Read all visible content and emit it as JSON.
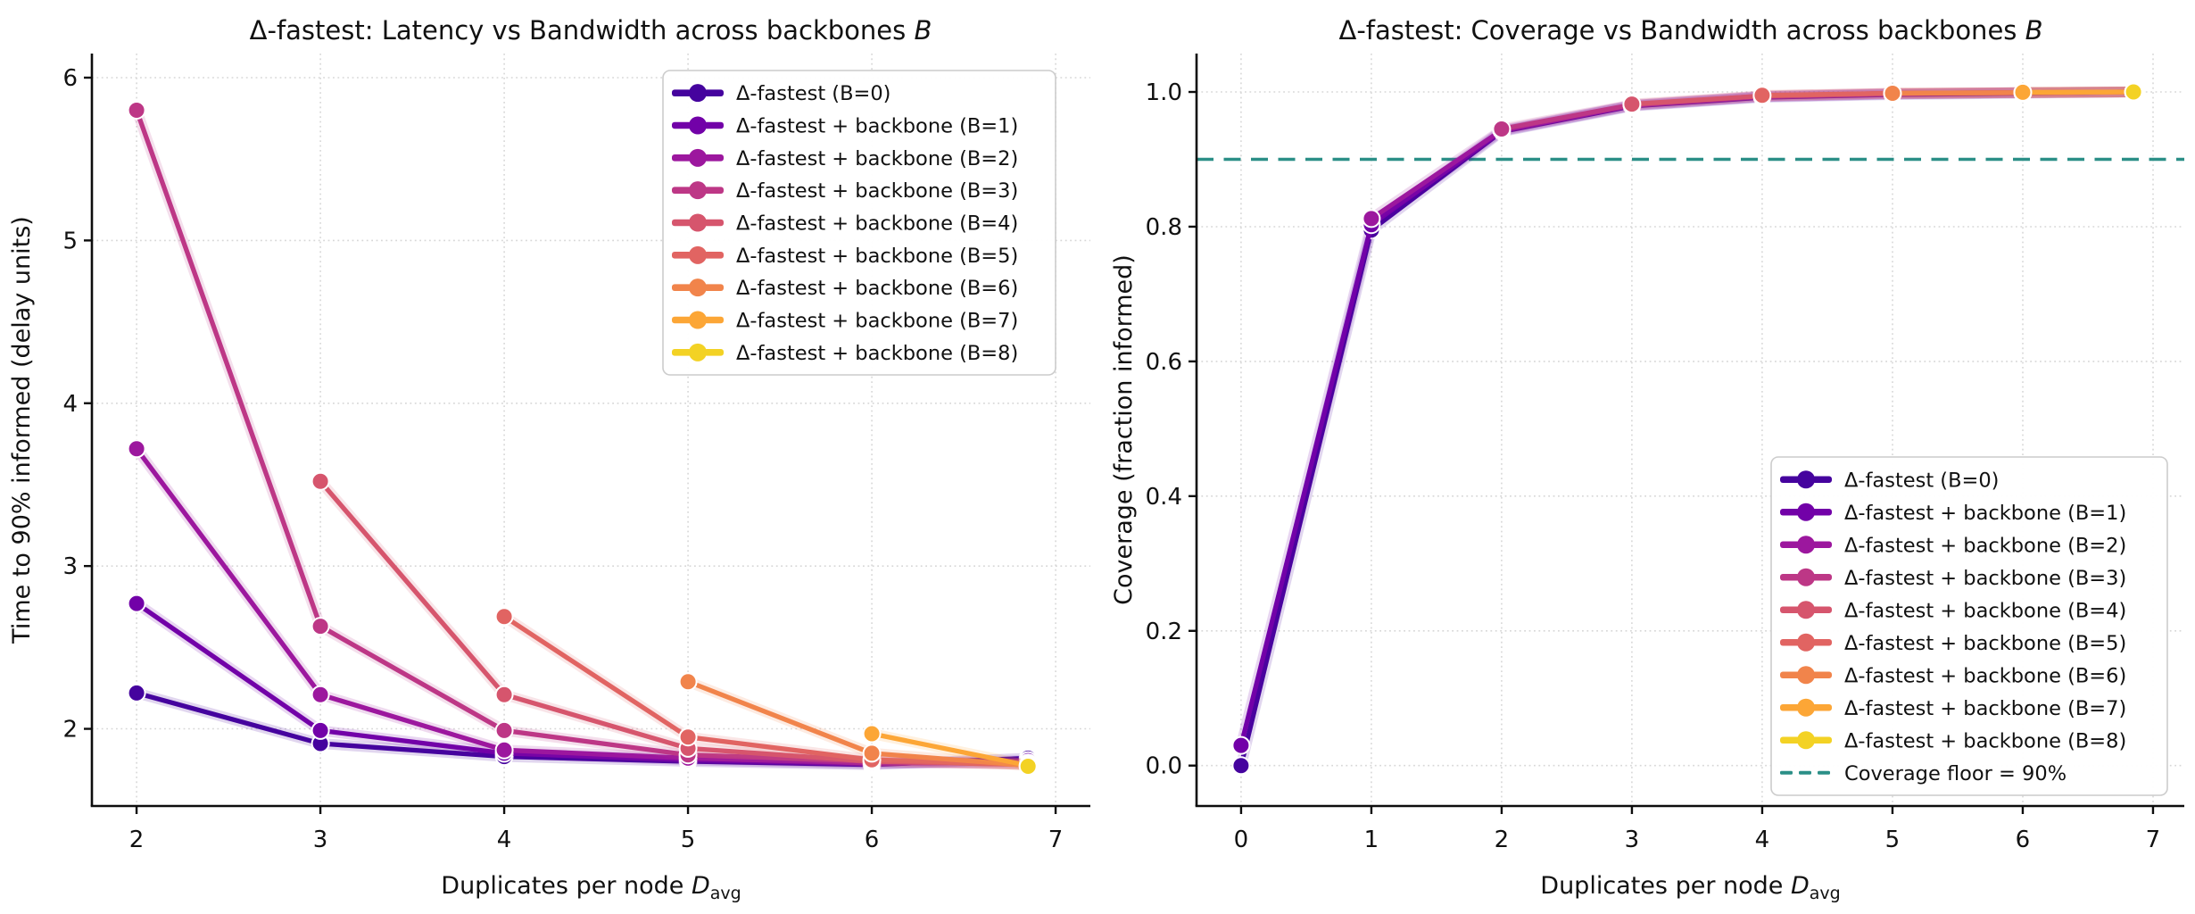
{
  "figure": {
    "background": "#ffffff",
    "description": "Two side-by-side line charts"
  },
  "chart_data": [
    {
      "id": "latency",
      "type": "line",
      "title": "Δ-fastest: Latency vs Bandwidth across backbones B",
      "title_parts": {
        "text": "Δ-fastest: Latency vs Bandwidth across backbones ",
        "italic": "B"
      },
      "xlabel": "Duplicates per node D_avg",
      "xlabel_parts": {
        "text": "Duplicates per node ",
        "var": "D",
        "sub": "avg"
      },
      "ylabel": "Time to 90% informed (delay units)",
      "xlim": [
        1.757,
        7.189
      ],
      "ylim": [
        1.526,
        6.148
      ],
      "grid": true,
      "legend_position": "upper right",
      "xticks": {
        "values": [
          2,
          3,
          4,
          5,
          6,
          7
        ],
        "labels": [
          "2",
          "3",
          "4",
          "5",
          "6",
          "7"
        ]
      },
      "yticks": {
        "values": [
          2,
          3,
          4,
          5,
          6
        ],
        "labels": [
          "2",
          "3",
          "4",
          "5",
          "6"
        ]
      },
      "series": [
        {
          "name": "Δ-fastest (B=0)",
          "color": "#45039e",
          "points": [
            [
              2,
              2.22
            ],
            [
              3,
              1.91
            ],
            [
              4,
              1.83
            ],
            [
              5,
              1.8
            ],
            [
              6,
              1.78
            ],
            [
              6.85,
              1.82
            ]
          ]
        },
        {
          "name": "Δ-fastest + backbone (B=1)",
          "color": "#7201a8",
          "points": [
            [
              2,
              2.77
            ],
            [
              3,
              1.99
            ],
            [
              4,
              1.85
            ],
            [
              5,
              1.81
            ],
            [
              6,
              1.785
            ],
            [
              6.85,
              1.805
            ]
          ]
        },
        {
          "name": "Δ-fastest + backbone (B=2)",
          "color": "#9c179e",
          "points": [
            [
              2,
              3.72
            ],
            [
              3,
              2.21
            ],
            [
              4,
              1.87
            ],
            [
              5,
              1.82
            ],
            [
              6,
              1.79
            ],
            [
              6.85,
              1.79
            ]
          ]
        },
        {
          "name": "Δ-fastest + backbone (B=3)",
          "color": "#bd3786",
          "points": [
            [
              2,
              5.8
            ],
            [
              3,
              2.63
            ],
            [
              4,
              1.99
            ],
            [
              5,
              1.84
            ],
            [
              6,
              1.8
            ],
            [
              6.85,
              1.785
            ]
          ]
        },
        {
          "name": "Δ-fastest + backbone (B=4)",
          "color": "#d6556d",
          "points": [
            [
              3,
              3.52
            ],
            [
              4,
              2.21
            ],
            [
              5,
              1.88
            ],
            [
              6,
              1.8
            ],
            [
              6.85,
              1.78
            ]
          ]
        },
        {
          "name": "Δ-fastest + backbone (B=5)",
          "color": "#e16462",
          "points": [
            [
              4,
              2.69
            ],
            [
              5,
              1.95
            ],
            [
              6,
              1.81
            ],
            [
              6.85,
              1.78
            ]
          ]
        },
        {
          "name": "Δ-fastest + backbone (B=6)",
          "color": "#f1844b",
          "points": [
            [
              5,
              2.29
            ],
            [
              6,
              1.85
            ],
            [
              6.85,
              1.775
            ]
          ]
        },
        {
          "name": "Δ-fastest + backbone (B=7)",
          "color": "#fca636",
          "points": [
            [
              6,
              1.97
            ],
            [
              6.85,
              1.775
            ]
          ]
        },
        {
          "name": "Δ-fastest + backbone (B=8)",
          "color": "#f3d224",
          "points": [
            [
              6.85,
              1.77
            ]
          ]
        }
      ]
    },
    {
      "id": "coverage",
      "type": "line",
      "title": "Δ-fastest: Coverage vs Bandwidth across backbones B",
      "title_parts": {
        "text": "Δ-fastest: Coverage vs Bandwidth across backbones ",
        "italic": "B"
      },
      "xlabel": "Duplicates per node D_avg",
      "xlabel_parts": {
        "text": "Duplicates per node ",
        "var": "D",
        "sub": "avg"
      },
      "ylabel": "Coverage (fraction informed)",
      "xlim": [
        -0.342,
        7.24
      ],
      "ylim": [
        -0.06,
        1.057
      ],
      "grid": true,
      "legend_position": "lower right",
      "xticks": {
        "values": [
          0,
          1,
          2,
          3,
          4,
          5,
          6,
          7
        ],
        "labels": [
          "0",
          "1",
          "2",
          "3",
          "4",
          "5",
          "6",
          "7"
        ]
      },
      "yticks": {
        "values": [
          0.0,
          0.2,
          0.4,
          0.6,
          0.8,
          1.0
        ],
        "labels": [
          "0.0",
          "0.2",
          "0.4",
          "0.6",
          "0.8",
          "1.0"
        ]
      },
      "hline": {
        "y": 0.9,
        "label": "Coverage floor = 90%",
        "color": "#2b8f87",
        "style": "dashed"
      },
      "series": [
        {
          "name": "Δ-fastest (B=0)",
          "color": "#45039e",
          "points": [
            [
              0,
              0.0
            ],
            [
              1,
              0.795
            ],
            [
              2,
              0.941
            ],
            [
              3,
              0.979
            ],
            [
              4,
              0.992
            ],
            [
              5,
              0.996
            ],
            [
              6,
              0.998
            ],
            [
              6.85,
              1.0
            ]
          ]
        },
        {
          "name": "Δ-fastest + backbone (B=1)",
          "color": "#7201a8",
          "points": [
            [
              0,
              0.03
            ],
            [
              1,
              0.803
            ],
            [
              2,
              0.942
            ],
            [
              3,
              0.98
            ],
            [
              4,
              0.993
            ],
            [
              5,
              0.997
            ],
            [
              6,
              0.999
            ],
            [
              6.85,
              1.0
            ]
          ]
        },
        {
          "name": "Δ-fastest + backbone (B=2)",
          "color": "#9c179e",
          "points": [
            [
              1,
              0.812
            ],
            [
              2,
              0.943
            ],
            [
              3,
              0.98
            ],
            [
              4,
              0.993
            ],
            [
              5,
              0.997
            ],
            [
              6,
              0.999
            ],
            [
              6.85,
              1.0
            ]
          ]
        },
        {
          "name": "Δ-fastest + backbone (B=3)",
          "color": "#bd3786",
          "points": [
            [
              2,
              0.945
            ],
            [
              3,
              0.981
            ],
            [
              4,
              0.994
            ],
            [
              5,
              0.998
            ],
            [
              6,
              0.999
            ],
            [
              6.85,
              1.0
            ]
          ]
        },
        {
          "name": "Δ-fastest + backbone (B=4)",
          "color": "#d6556d",
          "points": [
            [
              3,
              0.982
            ],
            [
              4,
              0.994
            ],
            [
              5,
              0.998
            ],
            [
              6,
              0.999
            ],
            [
              6.85,
              1.0
            ]
          ]
        },
        {
          "name": "Δ-fastest + backbone (B=5)",
          "color": "#e16462",
          "points": [
            [
              4,
              0.995
            ],
            [
              5,
              0.998
            ],
            [
              6,
              0.999
            ],
            [
              6.85,
              1.0
            ]
          ]
        },
        {
          "name": "Δ-fastest + backbone (B=6)",
          "color": "#f1844b",
          "points": [
            [
              5,
              0.998
            ],
            [
              6,
              0.999
            ],
            [
              6.85,
              1.0
            ]
          ]
        },
        {
          "name": "Δ-fastest + backbone (B=7)",
          "color": "#fca636",
          "points": [
            [
              6,
              0.9995
            ],
            [
              6.85,
              1.0
            ]
          ]
        },
        {
          "name": "Δ-fastest + backbone (B=8)",
          "color": "#f3d224",
          "points": [
            [
              6.85,
              1.0
            ]
          ]
        }
      ]
    }
  ],
  "style_colors": {
    "grid": "#d7d7d7",
    "spine": "#0d0d0d",
    "tick_label": "#1a1a1a",
    "legend_border": "#cccccc",
    "marker_edge": "#ffffff"
  }
}
